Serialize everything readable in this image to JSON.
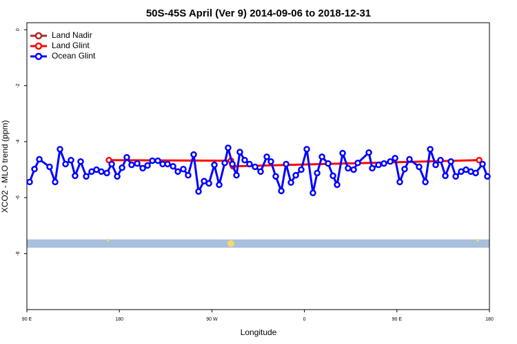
{
  "chart_data": {
    "type": "line",
    "title": "50S-45S April (Ver 9)   2014-09-06 to 2018-12-31",
    "x_label": "Longitude",
    "y_label": "XCO2 - MLO trend (ppm)",
    "xlim": [
      90,
      540
    ],
    "ylim": [
      -10,
      0.25
    ],
    "xticks": [
      {
        "value": 90,
        "label": "90 E"
      },
      180,
      {
        "value": 270,
        "label": "90 W"
      },
      {
        "value": 360,
        "label": "0"
      },
      {
        "value": 450,
        "label": "90 E"
      },
      {
        "value": 540,
        "label": "180"
      }
    ],
    "yticks": [
      0,
      -2,
      -4,
      -6,
      -8
    ],
    "legend": "top-left",
    "series": [
      {
        "name": "Land Nadir",
        "color": "#a52a2a",
        "x": [],
        "values": []
      },
      {
        "name": "Land Glint",
        "color": "#ff0000",
        "x": [
          169.8,
          288.5,
          290.5,
          530.0
        ],
        "values": [
          -4.66,
          -4.68,
          -4.88,
          -4.66
        ]
      },
      {
        "name": "Ocean Glint",
        "color": "#0000ff",
        "x": [
          92.7,
          97.4,
          102.1,
          112.1,
          117.5,
          122.2,
          127.6,
          132.9,
          136.9,
          142.3,
          147.7,
          153.0,
          157.7,
          162.4,
          167.8,
          172.5,
          177.9,
          182.6,
          187.2,
          191.9,
          197.3,
          202.7,
          207.4,
          212.1,
          217.4,
          222.1,
          226.8,
          232.2,
          236.9,
          242.2,
          246.9,
          252.3,
          257.0,
          262.4,
          267.1,
          272.4,
          277.1,
          282.5,
          285.8,
          289.9,
          293.9,
          297.2,
          301.9,
          306.6,
          312.0,
          317.4,
          323.4,
          327.4,
          332.1,
          337.5,
          342.2,
          346.9,
          351.6,
          356.9,
          362.3,
          368.3,
          372.4,
          377.1,
          383.1,
          387.8,
          391.8,
          397.2,
          402.5,
          407.9,
          411.9,
          422.7,
          426.0,
          432.1,
          437.4,
          443.5,
          448.2,
          452.8,
          457.5,
          462.2,
          471.6,
          477.7,
          482.4,
          487.7,
          492.4,
          497.1,
          502.5,
          507.2,
          512.5,
          517.2,
          521.9,
          526.6,
          533.3,
          538.0
        ],
        "values": [
          -5.44,
          -4.98,
          -4.63,
          -4.9,
          -5.44,
          -4.27,
          -4.8,
          -4.66,
          -5.22,
          -4.71,
          -5.24,
          -5.07,
          -5.0,
          -5.07,
          -5.12,
          -4.8,
          -5.24,
          -4.93,
          -4.56,
          -4.83,
          -4.78,
          -4.95,
          -4.85,
          -4.68,
          -4.68,
          -4.8,
          -4.8,
          -4.88,
          -5.07,
          -4.98,
          -5.2,
          -4.46,
          -5.78,
          -5.41,
          -5.49,
          -4.83,
          -5.54,
          -4.76,
          -4.22,
          -4.8,
          -5.2,
          -4.37,
          -4.66,
          -4.8,
          -4.9,
          -5.07,
          -4.54,
          -4.71,
          -5.24,
          -5.76,
          -4.8,
          -5.46,
          -5.2,
          -5.0,
          -4.27,
          -5.83,
          -5.12,
          -4.54,
          -4.78,
          -5.22,
          -5.54,
          -4.41,
          -4.95,
          -5.0,
          -4.76,
          -4.39,
          -4.95,
          -4.83,
          -4.78,
          -4.71,
          -4.59,
          -5.44,
          -4.98,
          -4.63,
          -4.9,
          -5.44,
          -4.27,
          -4.83,
          -4.66,
          -5.22,
          -4.71,
          -5.24,
          -5.07,
          -5.0,
          -5.07,
          -5.12,
          -4.8,
          -5.24
        ]
      }
    ]
  }
}
